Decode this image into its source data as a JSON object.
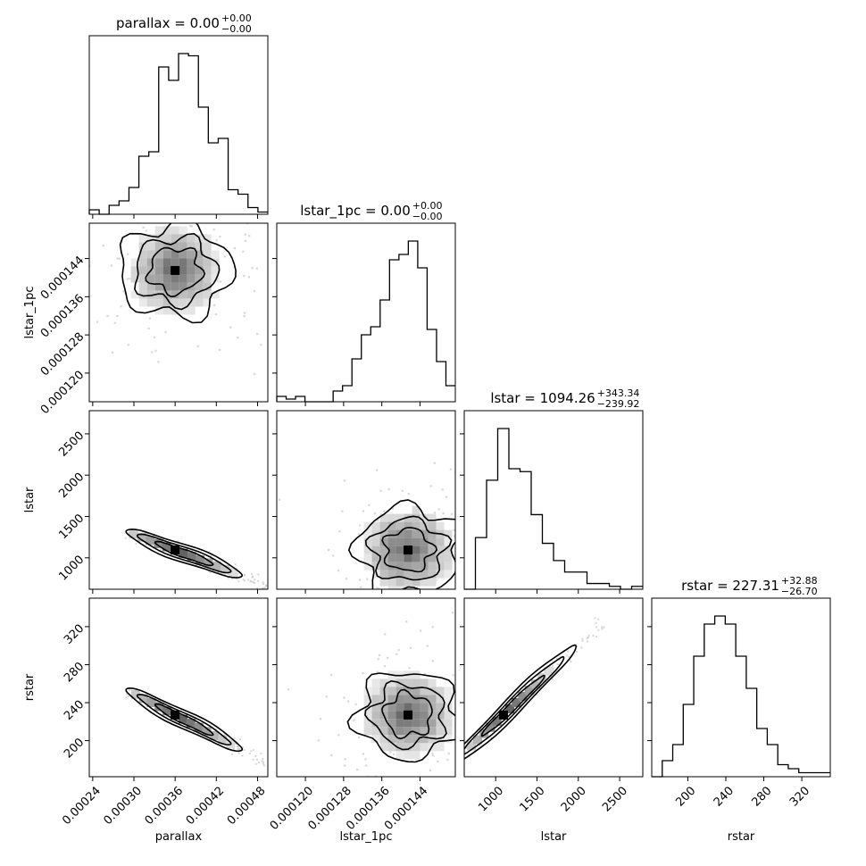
{
  "chart_data": {
    "type": "corner",
    "parameters": [
      "parallax",
      "lstar_1pc",
      "lstar",
      "rstar"
    ],
    "titles": [
      {
        "name": "parallax",
        "value": "0.00",
        "plus": "+0.00",
        "minus": "−0.00"
      },
      {
        "name": "lstar_1pc",
        "value": "0.00",
        "plus": "+0.00",
        "minus": "−0.00"
      },
      {
        "name": "lstar",
        "value": "1094.26",
        "plus": "+343.34",
        "minus": "−239.92"
      },
      {
        "name": "rstar",
        "value": "227.31",
        "plus": "+32.88",
        "minus": "−26.70"
      }
    ],
    "ranges": [
      [
        0.000235,
        0.000495
      ],
      [
        0.000114,
        0.0001514
      ],
      [
        620,
        2780
      ],
      [
        162,
        350
      ]
    ],
    "ticks": [
      {
        "values": [
          0.00024,
          0.0003,
          0.00036,
          0.00042,
          0.00048
        ],
        "labels": [
          "0.00024",
          "0.00030",
          "0.00036",
          "0.00042",
          "0.00048"
        ]
      },
      {
        "values": [
          0.00012,
          0.000128,
          0.000136,
          0.000144
        ],
        "labels": [
          "0.000120",
          "0.000128",
          "0.000136",
          "0.000144"
        ]
      },
      {
        "values": [
          1000,
          1500,
          2000,
          2500
        ],
        "labels": [
          "1000",
          "1500",
          "2000",
          "2500"
        ]
      },
      {
        "values": [
          200,
          240,
          280,
          320
        ],
        "labels": [
          "200",
          "240",
          "280",
          "320"
        ]
      }
    ],
    "histograms": [
      [
        4,
        0,
        8,
        12,
        24,
        52,
        56,
        132,
        120,
        144,
        142,
        96,
        64,
        68,
        22,
        18,
        6,
        2
      ],
      [
        4,
        2,
        4,
        0,
        0,
        0,
        8,
        12,
        32,
        50,
        56,
        76,
        106,
        110,
        120,
        100,
        54,
        30,
        12
      ],
      [
        0,
        18,
        38,
        56,
        42,
        41,
        26,
        16,
        10,
        6,
        6,
        2,
        2,
        1,
        0,
        1
      ],
      [
        0,
        4,
        8,
        18,
        30,
        38,
        40,
        38,
        30,
        22,
        12,
        8,
        3,
        2,
        1,
        1,
        1
      ]
    ],
    "histogram_peak_heights": [
      180,
      180,
      180,
      180
    ],
    "pairs": [
      {
        "row": 1,
        "col": 0,
        "relation": "uncorrelated",
        "mean": [
          0.00036,
          0.0001415
        ],
        "spread": [
          3.5e-05,
          5.5e-06
        ]
      },
      {
        "row": 2,
        "col": 0,
        "relation": "anticorrelated",
        "mean": [
          0.00036,
          1094
        ],
        "spread": [
          3.5e-05,
          300
        ]
      },
      {
        "row": 2,
        "col": 1,
        "relation": "uncorrelated",
        "mean": [
          0.0001415,
          1094
        ],
        "spread": [
          5.5e-06,
          300
        ]
      },
      {
        "row": 3,
        "col": 0,
        "relation": "anticorrelated",
        "mean": [
          0.00036,
          227
        ],
        "spread": [
          3.5e-05,
          30
        ]
      },
      {
        "row": 3,
        "col": 1,
        "relation": "uncorrelated",
        "mean": [
          0.0001415,
          227
        ],
        "spread": [
          5.5e-06,
          30
        ]
      },
      {
        "row": 3,
        "col": 2,
        "relation": "correlated",
        "mean": [
          1094,
          227
        ],
        "spread": [
          300,
          30
        ]
      }
    ],
    "grid": false,
    "legend": "none"
  }
}
